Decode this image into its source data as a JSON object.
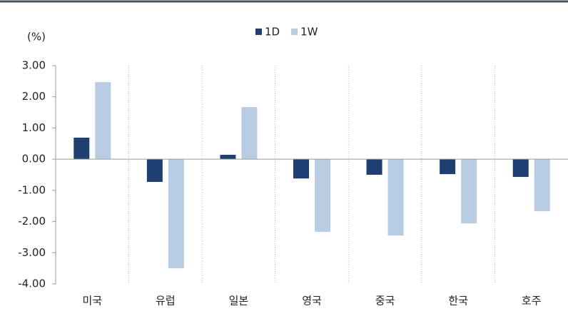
{
  "chart_data": {
    "type": "bar",
    "y_label": "(%)",
    "categories": [
      "미국",
      "유럽",
      "일본",
      "영국",
      "중국",
      "한국",
      "호주"
    ],
    "series": [
      {
        "name": "1D",
        "color": "#1f3f73",
        "values": [
          0.69,
          -0.73,
          0.14,
          -0.62,
          -0.5,
          -0.48,
          -0.57
        ]
      },
      {
        "name": "1W",
        "color": "#b8cce4",
        "values": [
          2.47,
          -3.5,
          1.67,
          -2.33,
          -2.45,
          -2.06,
          -1.67
        ]
      }
    ],
    "ylim": [
      -4,
      3
    ],
    "yticks": [
      {
        "value": 3,
        "label": "3.00"
      },
      {
        "value": 2,
        "label": "2.00"
      },
      {
        "value": 1,
        "label": "1.00"
      },
      {
        "value": 0,
        "label": "0.00"
      },
      {
        "value": -1,
        "label": "-1.00"
      },
      {
        "value": -2,
        "label": "-2.00"
      },
      {
        "value": -3,
        "label": "-3.00"
      },
      {
        "value": -4,
        "label": "-4.00"
      }
    ],
    "legend": "top"
  }
}
